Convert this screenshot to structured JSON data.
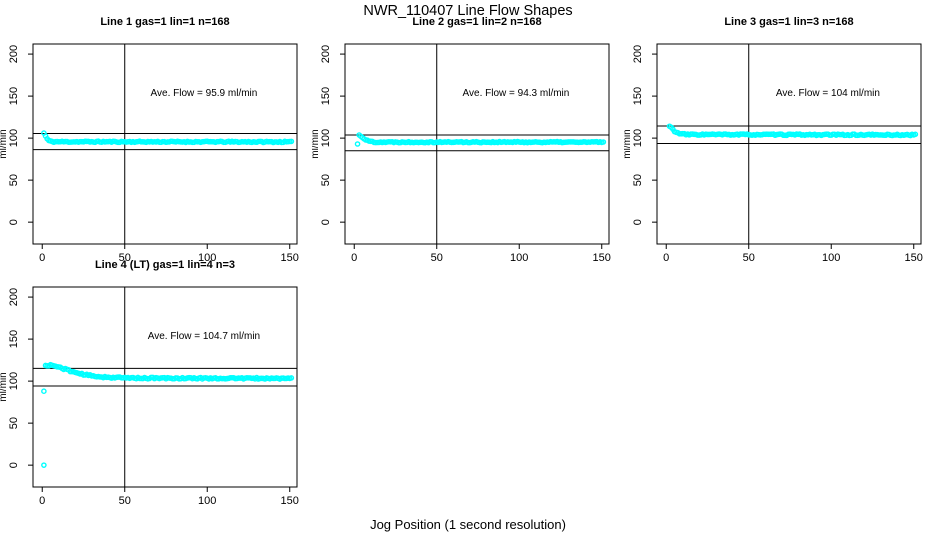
{
  "page": {
    "main_title": "NWR_110407  Line Flow Shapes",
    "x_axis_label": "Jog Position (1 second resolution)",
    "point_color": "#00ffff",
    "axis_color": "#000000",
    "background_color": "#ffffff"
  },
  "axes": {
    "x_ticks": [
      0,
      50,
      100,
      150
    ],
    "y_ticks": [
      0,
      50,
      100,
      150,
      200
    ],
    "ylabel": "ml/min",
    "vline_x": 50,
    "xlim": [
      -5.6,
      154.4
    ],
    "ylim": [
      -26,
      212
    ]
  },
  "chart_data": [
    {
      "type": "scatter",
      "title": "Line 1 gas=1 lin=1 n=168",
      "annotation": "Ave. Flow =  95.9  ml/min",
      "ave_flow_ml_min": 95.9,
      "n": 168,
      "gas": 1,
      "lin": 1,
      "hlines": [
        105.5,
        86.3
      ],
      "vline_x": 50,
      "annotation_pos": [
        98,
        150
      ],
      "profile": [
        [
          1,
          106
        ],
        [
          2,
          102.5
        ],
        [
          3,
          99
        ],
        [
          4,
          97
        ],
        [
          5,
          96.2
        ],
        [
          7,
          95.7
        ],
        [
          151,
          95.5
        ]
      ],
      "x_end": 151,
      "noise": 0.7,
      "noise_seed": 11,
      "outliers": []
    },
    {
      "type": "scatter",
      "title": "Line 2 gas=1 lin=2 n=168",
      "annotation": "Ave. Flow =  94.3  ml/min",
      "ave_flow_ml_min": 94.3,
      "n": 168,
      "gas": 1,
      "lin": 2,
      "hlines": [
        103.7,
        84.9
      ],
      "vline_x": 50,
      "annotation_pos": [
        98,
        150
      ],
      "profile": [
        [
          3,
          103.5
        ],
        [
          4,
          102.5
        ],
        [
          5,
          101
        ],
        [
          6,
          99.5
        ],
        [
          7,
          98
        ],
        [
          8,
          97
        ],
        [
          10,
          96
        ],
        [
          13,
          95.3
        ],
        [
          151,
          95.2
        ]
      ],
      "x_end": 151,
      "noise": 0.7,
      "noise_seed": 22,
      "outliers": [
        [
          2,
          93
        ]
      ]
    },
    {
      "type": "scatter",
      "title": "Line 3 gas=1 lin=3 n=168",
      "annotation": "Ave. Flow =  104  ml/min",
      "ave_flow_ml_min": 104,
      "n": 168,
      "gas": 1,
      "lin": 3,
      "hlines": [
        114.4,
        93.6
      ],
      "vline_x": 50,
      "annotation_pos": [
        98,
        150
      ],
      "profile": [
        [
          2,
          114
        ],
        [
          3,
          112.5
        ],
        [
          4,
          110.5
        ],
        [
          5,
          108.5
        ],
        [
          6,
          107
        ],
        [
          7,
          106
        ],
        [
          9,
          105
        ],
        [
          12,
          104.3
        ],
        [
          151,
          103.8
        ]
      ],
      "x_end": 151,
      "noise": 0.8,
      "noise_seed": 33,
      "outliers": []
    },
    {
      "type": "scatter",
      "title": "Line 4 (LT) gas=1 lin=4 n=3",
      "annotation": "Ave. Flow =  104.7  ml/min",
      "ave_flow_ml_min": 104.7,
      "n": 3,
      "gas": 1,
      "lin": 4,
      "hlines": [
        115.2,
        94.2
      ],
      "vline_x": 50,
      "annotation_pos": [
        98,
        150
      ],
      "profile": [
        [
          2,
          118
        ],
        [
          3,
          118.8
        ],
        [
          5,
          119
        ],
        [
          7,
          118.3
        ],
        [
          9,
          117.2
        ],
        [
          12,
          115.5
        ],
        [
          15,
          113.5
        ],
        [
          18,
          111.5
        ],
        [
          21,
          109.8
        ],
        [
          24,
          108.3
        ],
        [
          27,
          107.2
        ],
        [
          30,
          106.3
        ],
        [
          34,
          105.5
        ],
        [
          38,
          104.8
        ],
        [
          44,
          104.2
        ],
        [
          52,
          103.8
        ],
        [
          70,
          103.5
        ],
        [
          110,
          103.4
        ],
        [
          151,
          103.2
        ]
      ],
      "x_end": 151,
      "noise": 0.9,
      "noise_seed": 44,
      "outliers": [
        [
          1,
          0
        ],
        [
          1,
          88
        ]
      ]
    }
  ]
}
